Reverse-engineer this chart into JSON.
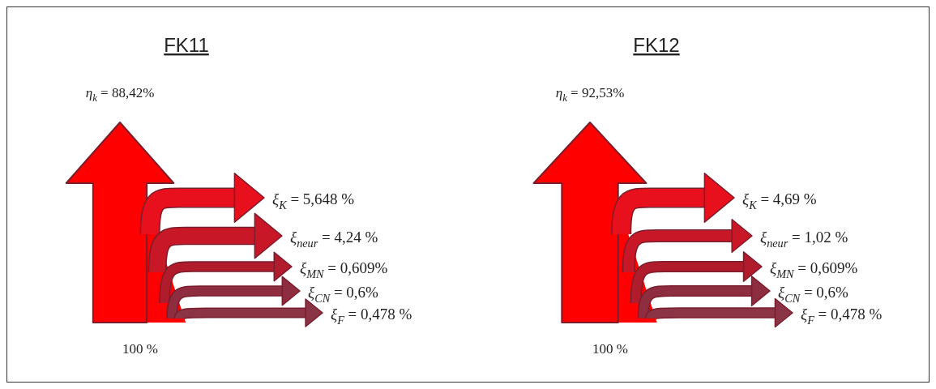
{
  "chart_data": [
    {
      "type": "other",
      "title": "FK11",
      "categories": [
        "η$_{k}$",
        "ξ$_{K}$",
        "ξ$_{neur}$",
        "ξ$_{MN}$",
        "ξ$_{CN}$",
        "ξ$_{F}$"
      ],
      "values": [
        88.42,
        5.648,
        4.24,
        0.609,
        0.6,
        0.478
      ],
      "value_labels": [
        "= 88,42%",
        "= 5,648 %",
        "= 4,24 %",
        "= 0,609%",
        "= 0,6%",
        "= 0,478 %"
      ],
      "colors": [
        "#ff0000",
        "#e8101c",
        "#c81828",
        "#b01c2c",
        "#8e2c40",
        "#8a3446"
      ],
      "annotations": [
        "100 %"
      ]
    },
    {
      "type": "other",
      "title": "FK12",
      "categories": [
        "η$_{k}$",
        "ξ$_{K}$",
        "ξ$_{neur}$",
        "ξ$_{MN}$",
        "ξ$_{CN}$",
        "ξ$_{F}$"
      ],
      "values": [
        92.53,
        4.69,
        1.02,
        0.609,
        0.6,
        0.478
      ],
      "value_labels": [
        "= 92,53%",
        "= 4,69 %",
        "= 1,02 %",
        "= 0,609%",
        "= 0,6%",
        "= 0,478 %"
      ],
      "colors": [
        "#ff0000",
        "#e8101c",
        "#c81828",
        "#b01c2c",
        "#8e2c40",
        "#8a3446"
      ],
      "annotations": [
        "100 %"
      ]
    }
  ]
}
